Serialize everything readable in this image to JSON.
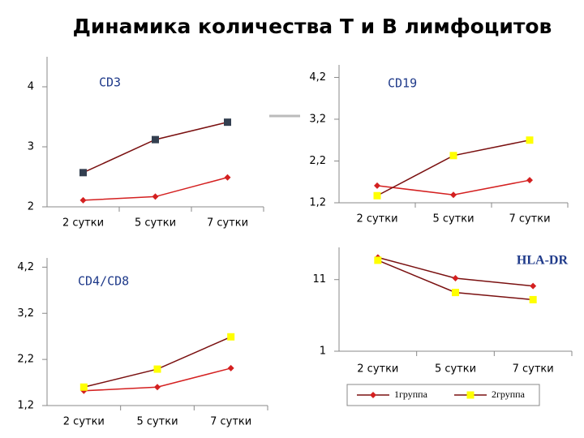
{
  "title": "Динамика количества Т и В лимфоцитов",
  "chart_data": [
    {
      "type": "line",
      "title": "CD3",
      "categories": [
        "2 сутки",
        "5 сутки",
        "7 сутки"
      ],
      "series": [
        {
          "color": "#d42020",
          "marker_color": "#d42020",
          "marker": "diamond",
          "values": [
            2.11,
            2.17,
            2.49
          ]
        },
        {
          "color": "#7a1010",
          "marker_color": "#333f50",
          "marker": "square",
          "values": [
            2.57,
            3.12,
            3.41
          ]
        }
      ],
      "ylim": [
        2,
        4.5
      ],
      "yticks": [
        2,
        3,
        4
      ]
    },
    {
      "type": "line",
      "title": "CD19",
      "categories": [
        "2 сутки",
        "5 сутки",
        "7 сутки"
      ],
      "series": [
        {
          "color": "#d42020",
          "marker_color": "#d42020",
          "marker": "diamond",
          "values": [
            1.61,
            1.39,
            1.74
          ]
        },
        {
          "color": "#7a1010",
          "marker_color": "#ffff00",
          "marker": "square",
          "values": [
            1.37,
            2.33,
            2.7
          ]
        }
      ],
      "ylim": [
        1.2,
        4.5
      ],
      "yticks": [
        {
          "value": 1.2,
          "label": "1,2"
        },
        {
          "value": 2.2,
          "label": "2,2"
        },
        {
          "value": 3.2,
          "label": "3,2"
        },
        {
          "value": 4.2,
          "label": "4,2"
        }
      ]
    },
    {
      "type": "line",
      "title": "CD4/CD8",
      "categories": [
        "2 сутки",
        "5 сутки",
        "7 сутки"
      ],
      "series": [
        {
          "color": "#d42020",
          "marker_color": "#d42020",
          "marker": "diamond",
          "values": [
            1.52,
            1.6,
            2.01
          ]
        },
        {
          "color": "#7a1010",
          "marker_color": "#ffff00",
          "marker": "square",
          "values": [
            1.6,
            1.99,
            2.69
          ]
        }
      ],
      "ylim": [
        1.2,
        4.4
      ],
      "yticks": [
        {
          "value": 1.2,
          "label": "1,2"
        },
        {
          "value": 2.2,
          "label": "2,2"
        },
        {
          "value": 3.2,
          "label": "3,2"
        },
        {
          "value": 4.2,
          "label": "4,2"
        }
      ]
    },
    {
      "type": "line",
      "title": "HLA-DR",
      "categories": [
        "2 сутки",
        "5 сутки",
        "7 сутки"
      ],
      "series": [
        {
          "name": "1группа",
          "color": "#7a1010",
          "marker_color": "#d42020",
          "marker": "diamond",
          "values": [
            14.1,
            11.2,
            10.1
          ]
        },
        {
          "name": "2группа",
          "color": "#7a1010",
          "marker_color": "#ffff00",
          "marker": "square",
          "values": [
            13.7,
            9.2,
            8.2
          ]
        }
      ],
      "ylim": [
        1,
        15.5
      ],
      "yticks": [
        1,
        11
      ],
      "legend": "bottom"
    }
  ]
}
